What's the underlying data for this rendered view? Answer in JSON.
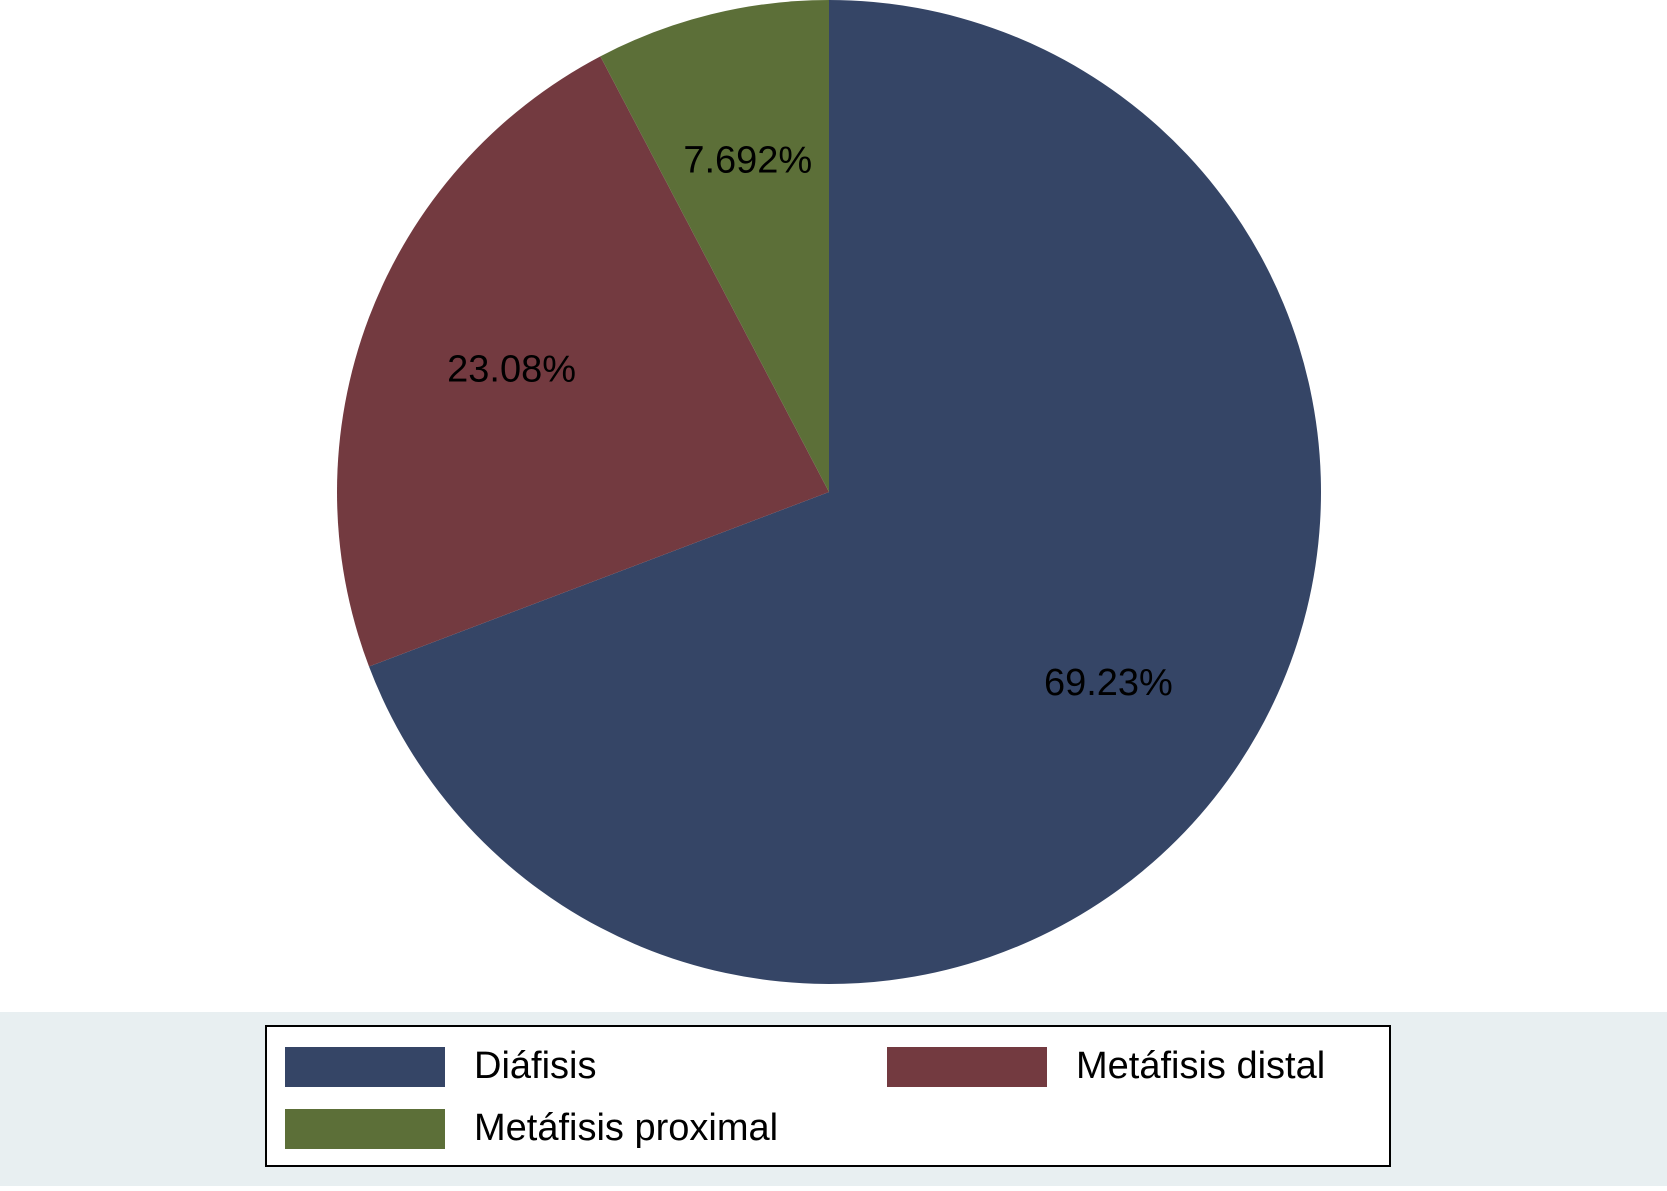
{
  "chart_data": {
    "type": "pie",
    "categories": [
      "Diáfisis",
      "Metáfisis distal",
      "Metáfisis proximal"
    ],
    "values": [
      69.23,
      23.08,
      7.692
    ],
    "value_labels": [
      "69.23%",
      "23.08%",
      "7.692%"
    ],
    "colors": [
      "#354566",
      "#733a40",
      "#5c6f38"
    ],
    "legend": "bottom"
  }
}
